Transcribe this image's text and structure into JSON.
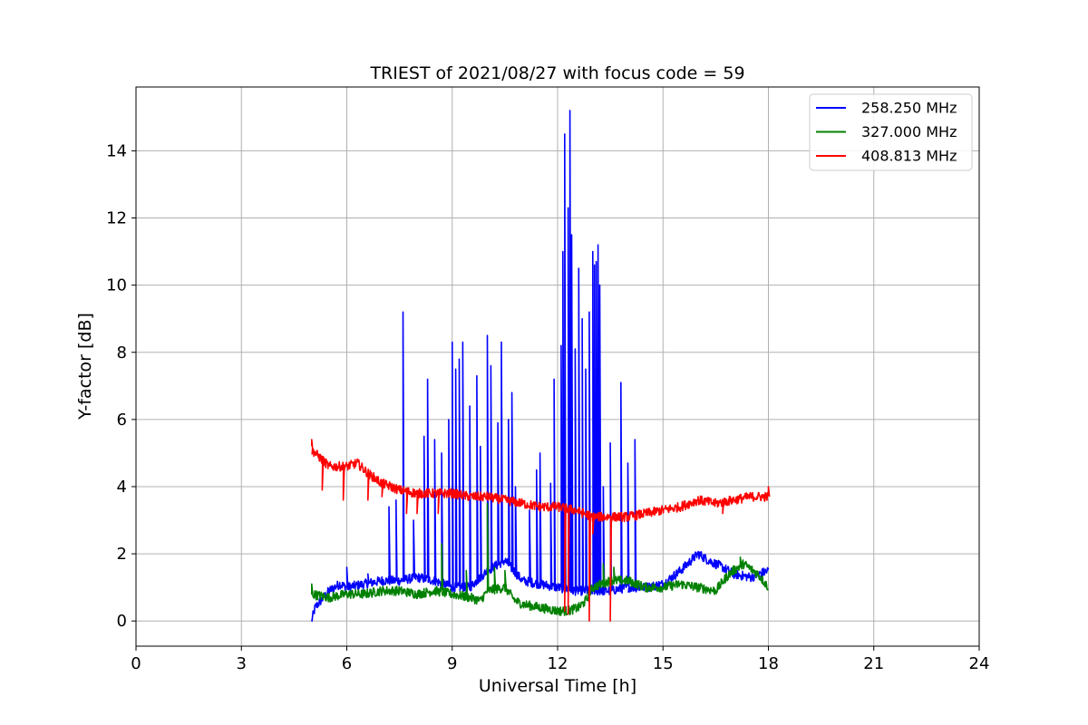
{
  "chart_data": {
    "type": "line",
    "title": "TRIEST of 2021/08/27 with focus code = 59",
    "xlabel": "Universal Time [h]",
    "ylabel": "Y-factor [dB]",
    "xlim": [
      0,
      24
    ],
    "ylim": [
      -0.75,
      15.9
    ],
    "xticks": [
      0,
      3,
      6,
      9,
      12,
      15,
      18,
      21,
      24
    ],
    "yticks": [
      0,
      2,
      4,
      6,
      8,
      10,
      12,
      14
    ],
    "grid": true,
    "legend_position": "top-right",
    "series": [
      {
        "name": "258.250 MHz",
        "color": "#0000ff",
        "baseline": [
          [
            5.0,
            0.0
          ],
          [
            5.1,
            0.4
          ],
          [
            5.5,
            0.9
          ],
          [
            5.8,
            1.1
          ],
          [
            6.0,
            1.0
          ],
          [
            6.5,
            1.1
          ],
          [
            7.0,
            1.2
          ],
          [
            7.5,
            1.2
          ],
          [
            8.0,
            1.3
          ],
          [
            8.5,
            1.2
          ],
          [
            9.0,
            1.0
          ],
          [
            9.5,
            1.0
          ],
          [
            10.0,
            1.5
          ],
          [
            10.5,
            1.8
          ],
          [
            11.0,
            1.2
          ],
          [
            11.5,
            1.1
          ],
          [
            12.0,
            1.0
          ],
          [
            12.5,
            0.9
          ],
          [
            13.0,
            0.9
          ],
          [
            13.5,
            0.9
          ],
          [
            14.0,
            1.0
          ],
          [
            14.5,
            1.0
          ],
          [
            15.0,
            1.1
          ],
          [
            15.5,
            1.5
          ],
          [
            16.0,
            2.0
          ],
          [
            16.3,
            1.8
          ],
          [
            16.7,
            1.6
          ],
          [
            17.0,
            1.4
          ],
          [
            17.5,
            1.3
          ],
          [
            18.0,
            1.5
          ]
        ],
        "spikes": [
          [
            6.0,
            1.6
          ],
          [
            6.6,
            1.4
          ],
          [
            7.2,
            3.4
          ],
          [
            7.4,
            3.6
          ],
          [
            7.6,
            9.2
          ],
          [
            7.9,
            3.0
          ],
          [
            8.2,
            5.5
          ],
          [
            8.3,
            7.2
          ],
          [
            8.5,
            5.4
          ],
          [
            8.7,
            5.0
          ],
          [
            8.9,
            6.0
          ],
          [
            9.0,
            8.3
          ],
          [
            9.1,
            7.5
          ],
          [
            9.2,
            7.8
          ],
          [
            9.3,
            8.3
          ],
          [
            9.5,
            6.4
          ],
          [
            9.7,
            7.3
          ],
          [
            9.8,
            5.2
          ],
          [
            10.0,
            8.5
          ],
          [
            10.1,
            7.6
          ],
          [
            10.3,
            5.9
          ],
          [
            10.4,
            8.3
          ],
          [
            10.6,
            6.0
          ],
          [
            10.7,
            6.8
          ],
          [
            10.8,
            4.0
          ],
          [
            11.2,
            3.3
          ],
          [
            11.4,
            4.5
          ],
          [
            11.5,
            5.0
          ],
          [
            11.8,
            4.1
          ],
          [
            11.9,
            7.2
          ],
          [
            12.1,
            8.2
          ],
          [
            12.15,
            11.0
          ],
          [
            12.2,
            14.5
          ],
          [
            12.3,
            12.3
          ],
          [
            12.35,
            15.2
          ],
          [
            12.4,
            11.5
          ],
          [
            12.5,
            8.1
          ],
          [
            12.6,
            10.5
          ],
          [
            12.7,
            9.0
          ],
          [
            12.8,
            7.5
          ],
          [
            12.9,
            9.2
          ],
          [
            13.0,
            11.0
          ],
          [
            13.05,
            10.6
          ],
          [
            13.1,
            10.7
          ],
          [
            13.15,
            11.2
          ],
          [
            13.2,
            10.0
          ],
          [
            13.3,
            4.0
          ],
          [
            13.5,
            5.3
          ],
          [
            13.8,
            7.1
          ],
          [
            14.0,
            4.7
          ],
          [
            14.2,
            5.4
          ]
        ]
      },
      {
        "name": "327.000 MHz",
        "color": "#008000",
        "baseline": [
          [
            5.0,
            0.8
          ],
          [
            5.5,
            0.7
          ],
          [
            6.0,
            0.8
          ],
          [
            6.5,
            0.8
          ],
          [
            7.0,
            0.9
          ],
          [
            7.5,
            0.9
          ],
          [
            8.0,
            0.8
          ],
          [
            8.5,
            0.9
          ],
          [
            9.0,
            0.8
          ],
          [
            9.5,
            0.7
          ],
          [
            9.8,
            0.6
          ],
          [
            10.0,
            0.9
          ],
          [
            10.5,
            1.0
          ],
          [
            10.8,
            0.6
          ],
          [
            11.0,
            0.5
          ],
          [
            11.5,
            0.4
          ],
          [
            12.0,
            0.3
          ],
          [
            12.3,
            0.3
          ],
          [
            12.6,
            0.4
          ],
          [
            12.8,
            0.6
          ],
          [
            13.0,
            1.0
          ],
          [
            13.5,
            1.2
          ],
          [
            14.0,
            1.2
          ],
          [
            14.5,
            1.0
          ],
          [
            15.0,
            1.0
          ],
          [
            15.5,
            1.1
          ],
          [
            16.0,
            1.0
          ],
          [
            16.5,
            0.9
          ],
          [
            16.8,
            1.3
          ],
          [
            17.0,
            1.5
          ],
          [
            17.3,
            1.7
          ],
          [
            17.7,
            1.4
          ],
          [
            18.0,
            1.0
          ]
        ],
        "spikes": [
          [
            5.0,
            1.1
          ],
          [
            8.7,
            2.3
          ],
          [
            9.4,
            1.5
          ],
          [
            10.0,
            3.5
          ],
          [
            10.2,
            1.6
          ],
          [
            10.5,
            1.5
          ],
          [
            13.3,
            1.7
          ],
          [
            13.6,
            1.6
          ],
          [
            17.2,
            1.9
          ]
        ]
      },
      {
        "name": "408.813 MHz",
        "color": "#ff0000",
        "baseline": [
          [
            5.0,
            5.1
          ],
          [
            5.2,
            4.9
          ],
          [
            5.5,
            4.6
          ],
          [
            6.0,
            4.6
          ],
          [
            6.3,
            4.7
          ],
          [
            6.6,
            4.4
          ],
          [
            7.0,
            4.1
          ],
          [
            7.5,
            3.9
          ],
          [
            8.0,
            3.8
          ],
          [
            8.5,
            3.8
          ],
          [
            9.0,
            3.8
          ],
          [
            9.5,
            3.7
          ],
          [
            10.0,
            3.7
          ],
          [
            10.5,
            3.6
          ],
          [
            11.0,
            3.5
          ],
          [
            11.5,
            3.4
          ],
          [
            12.0,
            3.4
          ],
          [
            12.5,
            3.3
          ],
          [
            13.0,
            3.1
          ],
          [
            13.5,
            3.1
          ],
          [
            14.0,
            3.1
          ],
          [
            14.5,
            3.2
          ],
          [
            15.0,
            3.3
          ],
          [
            15.5,
            3.4
          ],
          [
            16.0,
            3.6
          ],
          [
            16.5,
            3.5
          ],
          [
            17.0,
            3.6
          ],
          [
            17.5,
            3.7
          ],
          [
            18.0,
            3.7
          ]
        ],
        "spikes": [
          [
            5.0,
            5.4
          ],
          [
            5.3,
            3.9
          ],
          [
            5.9,
            3.6
          ],
          [
            6.6,
            3.6
          ],
          [
            7.0,
            3.7
          ],
          [
            7.7,
            3.2
          ],
          [
            8.0,
            3.2
          ],
          [
            8.6,
            3.2
          ],
          [
            12.2,
            0.3
          ],
          [
            12.3,
            0.2
          ],
          [
            12.9,
            0.0
          ],
          [
            13.0,
            2.6
          ],
          [
            13.5,
            0.0
          ],
          [
            16.7,
            3.2
          ],
          [
            18.0,
            4.0
          ]
        ]
      }
    ]
  }
}
